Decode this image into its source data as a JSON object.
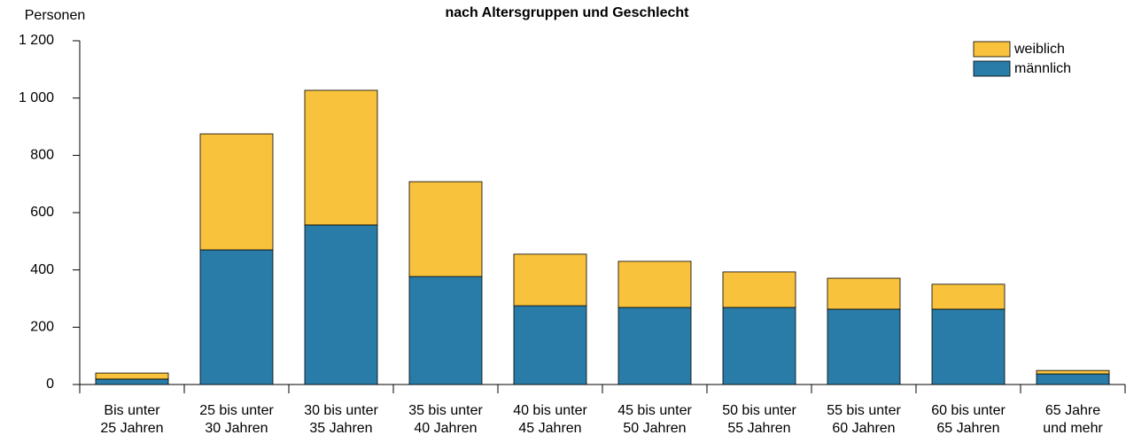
{
  "chart_data": {
    "type": "stacked_bar",
    "title": "nach Altersgruppen und Geschlecht",
    "y_axis_label": "Personen",
    "categories": [
      [
        "Bis unter",
        "25 Jahren"
      ],
      [
        "25 bis unter",
        "30 Jahren"
      ],
      [
        "30 bis unter",
        "35 Jahren"
      ],
      [
        "35 bis unter",
        "40 Jahren"
      ],
      [
        "40 bis unter",
        "45 Jahren"
      ],
      [
        "45 bis unter",
        "50 Jahren"
      ],
      [
        "50 bis unter",
        "55 Jahren"
      ],
      [
        "55 bis unter",
        "60 Jahren"
      ],
      [
        "60 bis unter",
        "65 Jahren"
      ],
      [
        "65 Jahre",
        "und mehr"
      ]
    ],
    "series": [
      {
        "name": "männlich",
        "color": "#2a7ca8",
        "values": [
          19,
          470,
          557,
          377,
          275,
          269,
          269,
          263,
          263,
          37
        ]
      },
      {
        "name": "weiblich",
        "color": "#f8c23c",
        "values": [
          21,
          405,
          470,
          331,
          180,
          161,
          124,
          108,
          87,
          12
        ]
      }
    ],
    "ylim": [
      0,
      1200
    ],
    "yticks": [
      0,
      200,
      400,
      600,
      800,
      {
        "value": 1000,
        "label": "1 000"
      },
      {
        "value": 1200,
        "label": "1 200"
      }
    ],
    "legend": "top-right"
  }
}
